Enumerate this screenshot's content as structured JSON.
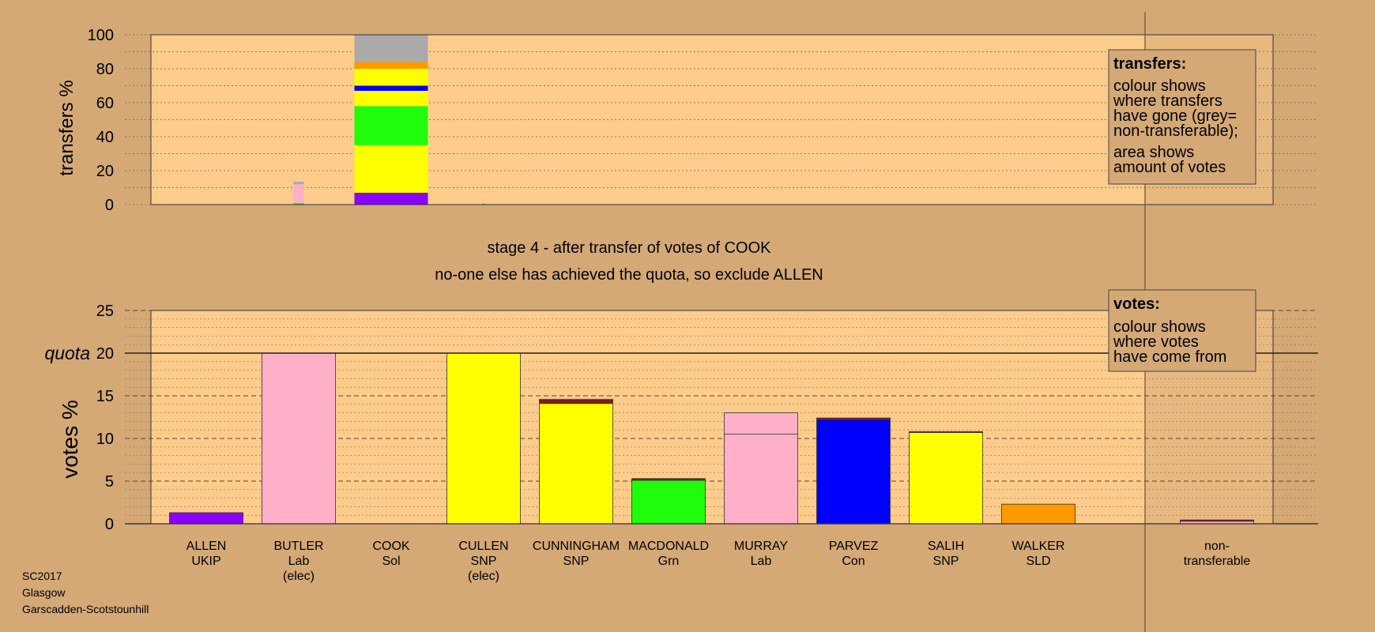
{
  "colors": {
    "background": "#d4a976",
    "plot_area": "#ffcc8c",
    "nontransferable_area": "#d4a976",
    "UKIP": "#8a00ff",
    "Lab": "#ffb0c8",
    "SNP": "#ffff00",
    "Grn": "#1ffc0c",
    "Con": "#0000ff",
    "SLD": "#ff9900",
    "Sol": "#ff1111",
    "grey": "#aaaaaa",
    "dark_red": "#8b1a10"
  },
  "texts": {
    "stage_title": "stage 4 - after transfer of votes of COOK",
    "stage_subtitle": "no-one else has achieved the quota, so exclude ALLEN",
    "quota_label": "quota",
    "footer": [
      "SC2017",
      "Glasgow",
      "Garscadden-Scotstounhill"
    ],
    "transfers_legend": {
      "heading": "transfers:",
      "lines_1": [
        "colour shows",
        "where transfers",
        "have gone (grey=",
        "non-transferable);"
      ],
      "lines_2": [
        "area shows",
        "amount of votes"
      ]
    },
    "votes_legend": {
      "heading": "votes:",
      "lines": [
        "colour shows",
        "where votes",
        "have come from"
      ]
    }
  },
  "candidates": [
    {
      "name": "ALLEN",
      "party": "UKIP",
      "note": ""
    },
    {
      "name": "BUTLER",
      "party": "Lab",
      "note": "(elec)"
    },
    {
      "name": "COOK",
      "party": "Sol",
      "note": ""
    },
    {
      "name": "CULLEN",
      "party": "SNP",
      "note": "(elec)"
    },
    {
      "name": "CUNNINGHAM",
      "party": "SNP",
      "note": ""
    },
    {
      "name": "MACDONALD",
      "party": "Grn",
      "note": ""
    },
    {
      "name": "MURRAY",
      "party": "Lab",
      "note": ""
    },
    {
      "name": "PARVEZ",
      "party": "Con",
      "note": ""
    },
    {
      "name": "SALIH",
      "party": "SNP",
      "note": ""
    },
    {
      "name": "WALKER",
      "party": "SLD",
      "note": ""
    }
  ],
  "nontransferable_label": [
    "non-",
    "transferable"
  ],
  "chart_data": [
    {
      "type": "bar",
      "panel": "transfers",
      "ylabel": "transfers %",
      "ylim": [
        0,
        100
      ],
      "yticks": [
        0,
        20,
        40,
        60,
        80,
        100
      ],
      "grid": true,
      "bars": [
        {
          "candidate_index": 1,
          "width_fraction": 0.14,
          "segments": [
            {
              "color": "#1ffc0c",
              "value": 1
            },
            {
              "color": "#ffb0c8",
              "value": 11
            },
            {
              "color": "#aaaaaa",
              "value": 1.5
            }
          ]
        },
        {
          "candidate_index": 2,
          "width_fraction": 1.0,
          "segments": [
            {
              "color": "#8a00ff",
              "value": 7
            },
            {
              "color": "#ffff00",
              "value": 28
            },
            {
              "color": "#1ffc0c",
              "value": 23
            },
            {
              "color": "#ffff00",
              "value": 9
            },
            {
              "color": "#0000ff",
              "value": 3
            },
            {
              "color": "#ffff00",
              "value": 10
            },
            {
              "color": "#ff9900",
              "value": 4
            },
            {
              "color": "#aaaaaa",
              "value": 16
            }
          ]
        },
        {
          "candidate_index": 3,
          "width_fraction": 0.005,
          "segments": [
            {
              "color": "#1ffc0c",
              "value": 0.8
            }
          ]
        }
      ]
    },
    {
      "type": "bar",
      "panel": "votes",
      "ylabel": "votes %",
      "ylim": [
        0,
        25
      ],
      "yticks": [
        0,
        5,
        10,
        15,
        20,
        25
      ],
      "quota": 20,
      "grid": true,
      "bars": [
        {
          "candidate_index": 0,
          "segments": [
            {
              "color": "#8a00ff",
              "value": 1.3
            }
          ]
        },
        {
          "candidate_index": 1,
          "segments": [
            {
              "color": "#ffb0c8",
              "value": 20
            }
          ]
        },
        {
          "candidate_index": 2,
          "segments": []
        },
        {
          "candidate_index": 3,
          "segments": [
            {
              "color": "#ffff00",
              "value": 20
            }
          ]
        },
        {
          "candidate_index": 4,
          "segments": [
            {
              "color": "#ffff00",
              "value": 14.1
            },
            {
              "color": "#8b1a10",
              "value": 0.4
            },
            {
              "color": "#ffb0c8",
              "value": 0.1
            }
          ]
        },
        {
          "candidate_index": 5,
          "segments": [
            {
              "color": "#1ffc0c",
              "value": 5.1
            },
            {
              "color": "#8b1a10",
              "value": 0.2
            }
          ]
        },
        {
          "candidate_index": 6,
          "segments": [
            {
              "color": "#ffb0c8",
              "value": 10.5
            },
            {
              "color": "#ffb0c8",
              "value": 2.5
            }
          ]
        },
        {
          "candidate_index": 7,
          "segments": [
            {
              "color": "#0000ff",
              "value": 12.2
            },
            {
              "color": "#8b1a10",
              "value": 0.2
            }
          ]
        },
        {
          "candidate_index": 8,
          "segments": [
            {
              "color": "#ffff00",
              "value": 10.7
            },
            {
              "color": "#8b1a10",
              "value": 0.1
            }
          ]
        },
        {
          "candidate_index": 9,
          "segments": [
            {
              "color": "#ff9900",
              "value": 2.3
            }
          ]
        }
      ],
      "nontransferable": [
        {
          "color": "#ffb0c8",
          "value": 0.3
        },
        {
          "color": "#8b1a10",
          "value": 0.15
        }
      ]
    }
  ]
}
